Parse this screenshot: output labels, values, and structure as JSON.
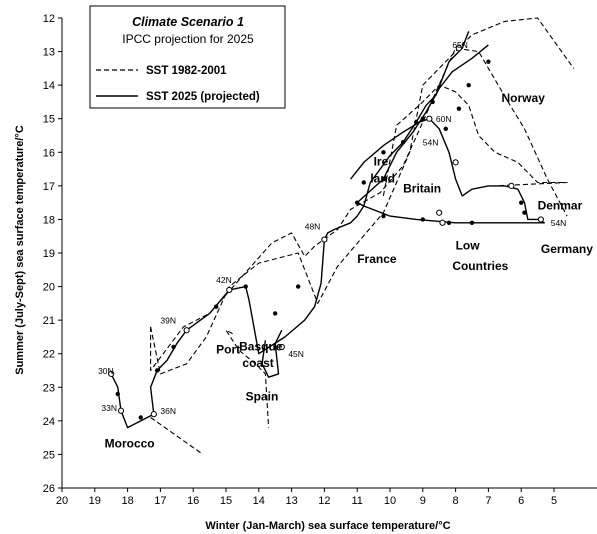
{
  "chart_data": {
    "type": "line",
    "title": "Climate Scenario 1",
    "subtitle": "IPCC projection for 2025",
    "xlabel": "Winter (Jan-March) sea surface temperature/°C",
    "ylabel": "Summer (July-Sept) sea surface temperature/°C",
    "xlim": [
      20,
      4.5
    ],
    "ylim": [
      26,
      12
    ],
    "x_reversed": true,
    "y_reversed": true,
    "xticks": [
      20,
      19,
      18,
      17,
      16,
      15,
      14,
      13,
      12,
      11,
      10,
      9,
      8,
      7,
      6,
      5
    ],
    "yticks": [
      12,
      13,
      14,
      15,
      16,
      17,
      18,
      19,
      20,
      21,
      22,
      23,
      24,
      25,
      26
    ],
    "grid": false,
    "legend_placement": "top-left",
    "series": [
      {
        "name": "SST 1982-2001",
        "style": "dashed",
        "segments": [
          [
            [
              17.3,
              21.2
            ],
            [
              17.0,
              22.6
            ],
            [
              16.2,
              22.3
            ],
            [
              15.6,
              21.5
            ],
            [
              14.9,
              20.0
            ],
            [
              14.0,
              19.3
            ],
            [
              12.8,
              19.0
            ],
            [
              12.2,
              20.5
            ],
            [
              11.6,
              19.4
            ],
            [
              10.2,
              17.8
            ],
            [
              9.4,
              16.0
            ],
            [
              9.0,
              14.0
            ],
            [
              8.1,
              13.1
            ],
            [
              7.5,
              12.5
            ],
            [
              6.5,
              12.1
            ],
            [
              5.5,
              12.0
            ],
            [
              4.4,
              13.5
            ]
          ],
          [
            [
              17.3,
              21.2
            ],
            [
              17.3,
              22.5
            ],
            [
              16.3,
              21.2
            ],
            [
              15.5,
              20.8
            ],
            [
              14.6,
              19.8
            ],
            [
              13.6,
              18.7
            ],
            [
              13.0,
              18.4
            ],
            [
              12.6,
              19.1
            ],
            [
              12.3,
              18.8
            ],
            [
              11.6,
              18.3
            ],
            [
              11.2,
              17.7
            ],
            [
              10.3,
              17.2
            ],
            [
              9.6,
              16.4
            ],
            [
              9.0,
              15.1
            ],
            [
              8.6,
              14.2
            ],
            [
              8.0,
              12.9
            ],
            [
              7.3,
              13.0
            ],
            [
              6.4,
              14.5
            ],
            [
              5.9,
              15.3
            ],
            [
              5.2,
              16.8
            ],
            [
              4.6,
              17.9
            ]
          ],
          [
            [
              10.2,
              17.3
            ],
            [
              9.8,
              15.2
            ],
            [
              9.0,
              14.5
            ],
            [
              8.5,
              14.0
            ],
            [
              8.0,
              14.2
            ],
            [
              7.6,
              14.6
            ],
            [
              7.3,
              15.5
            ],
            [
              6.8,
              16.0
            ],
            [
              6.1,
              16.3
            ],
            [
              5.5,
              16.9
            ],
            [
              4.6,
              16.9
            ],
            [
              6.8,
              17.0
            ]
          ],
          [
            [
              14.8,
              21.4
            ],
            [
              15.0,
              21.3
            ],
            [
              14.6,
              21.9
            ],
            [
              14.1,
              22.3
            ],
            [
              13.8,
              22.6
            ],
            [
              13.7,
              24.2
            ]
          ],
          [
            [
              17.3,
              23.9
            ],
            [
              15.7,
              25.0
            ]
          ]
        ]
      },
      {
        "name": "SST 2025 (projected)",
        "style": "solid",
        "segments": [
          [
            [
              18.5,
              22.6
            ],
            [
              18.3,
              23.0
            ],
            [
              18.2,
              23.7
            ],
            [
              18.0,
              24.2
            ],
            [
              17.2,
              23.8
            ],
            [
              17.3,
              23.0
            ],
            [
              17.1,
              22.5
            ],
            [
              16.8,
              22.2
            ],
            [
              16.5,
              21.7
            ],
            [
              16.2,
              21.3
            ],
            [
              15.5,
              20.8
            ],
            [
              14.9,
              20.1
            ],
            [
              14.4,
              20.0
            ],
            [
              14.3,
              20.4
            ],
            [
              14.0,
              22.0
            ],
            [
              13.2,
              21.5
            ],
            [
              12.6,
              21.0
            ],
            [
              12.3,
              20.6
            ],
            [
              12.1,
              19.9
            ],
            [
              12.0,
              18.6
            ],
            [
              11.9,
              18.4
            ],
            [
              11.7,
              18.3
            ],
            [
              11.2,
              18.1
            ],
            [
              11.0,
              17.9
            ],
            [
              10.8,
              17.6
            ],
            [
              10.6,
              16.9
            ],
            [
              10.0,
              16.1
            ],
            [
              9.6,
              15.7
            ],
            [
              9.2,
              15.1
            ],
            [
              8.9,
              14.6
            ],
            [
              8.6,
              14.3
            ],
            [
              8.2,
              13.3
            ],
            [
              7.8,
              12.9
            ],
            [
              7.6,
              12.4
            ]
          ],
          [
            [
              11.0,
              17.5
            ],
            [
              10.2,
              16.8
            ],
            [
              9.8,
              16.0
            ],
            [
              9.3,
              15.4
            ],
            [
              8.9,
              14.8
            ],
            [
              8.5,
              14.1
            ],
            [
              8.1,
              13.6
            ],
            [
              7.5,
              13.2
            ],
            [
              7.0,
              12.8
            ]
          ],
          [
            [
              11.2,
              16.8
            ],
            [
              10.8,
              16.3
            ],
            [
              10.2,
              15.8
            ],
            [
              9.6,
              15.4
            ],
            [
              9.1,
              15.1
            ],
            [
              8.8,
              15.0
            ],
            [
              8.5,
              15.3
            ],
            [
              8.2,
              16.0
            ],
            [
              8.0,
              16.8
            ],
            [
              7.8,
              17.3
            ],
            [
              7.5,
              17.1
            ],
            [
              7.0,
              17.0
            ],
            [
              6.5,
              17.0
            ],
            [
              6.1,
              17.1
            ],
            [
              5.9,
              17.5
            ],
            [
              5.8,
              18.0
            ],
            [
              5.5,
              18.0
            ],
            [
              5.3,
              18.1
            ],
            [
              6.0,
              18.1
            ],
            [
              7.0,
              18.1
            ],
            [
              8.0,
              18.1
            ],
            [
              9.2,
              18.0
            ],
            [
              10.0,
              17.9
            ],
            [
              10.8,
              17.6
            ],
            [
              11.0,
              17.5
            ]
          ],
          [
            [
              13.8,
              21.6
            ],
            [
              13.9,
              22.3
            ],
            [
              13.7,
              22.7
            ],
            [
              13.4,
              22.6
            ],
            [
              13.5,
              21.7
            ],
            [
              13.3,
              21.3
            ]
          ]
        ]
      }
    ],
    "annotations": [
      {
        "text": "30N",
        "x": 18.9,
        "y": 22.6,
        "kind": "latitude"
      },
      {
        "text": "33N",
        "x": 18.8,
        "y": 23.7,
        "kind": "latitude"
      },
      {
        "text": "36N",
        "x": 17.0,
        "y": 23.8,
        "kind": "latitude"
      },
      {
        "text": "39N",
        "x": 17.0,
        "y": 21.1,
        "kind": "latitude"
      },
      {
        "text": "42N",
        "x": 15.3,
        "y": 19.9,
        "kind": "latitude"
      },
      {
        "text": "45N",
        "x": 13.1,
        "y": 22.1,
        "kind": "latitude"
      },
      {
        "text": "48N",
        "x": 12.6,
        "y": 18.3,
        "kind": "latitude"
      },
      {
        "text": "54N",
        "x": 9.0,
        "y": 15.8,
        "kind": "latitude"
      },
      {
        "text": "60N",
        "x": 8.6,
        "y": 15.1,
        "kind": "latitude"
      },
      {
        "text": "65N",
        "x": 8.1,
        "y": 12.9,
        "kind": "latitude"
      },
      {
        "text": "54N",
        "x": 5.1,
        "y": 18.2,
        "kind": "latitude"
      },
      {
        "text": "Morocco",
        "x": 18.7,
        "y": 24.8,
        "kind": "region"
      },
      {
        "text": "Port",
        "x": 15.3,
        "y": 22.0,
        "kind": "region"
      },
      {
        "text": "Basque",
        "x": 14.6,
        "y": 21.9,
        "kind": "region"
      },
      {
        "text": "coast",
        "x": 14.5,
        "y": 22.4,
        "kind": "region"
      },
      {
        "text": "Spain",
        "x": 14.4,
        "y": 23.4,
        "kind": "region"
      },
      {
        "text": "France",
        "x": 11.0,
        "y": 19.3,
        "kind": "region"
      },
      {
        "text": "Ire",
        "x": 10.5,
        "y": 16.4,
        "kind": "region"
      },
      {
        "text": "land",
        "x": 10.6,
        "y": 16.9,
        "kind": "region"
      },
      {
        "text": "Britain",
        "x": 9.6,
        "y": 17.2,
        "kind": "region"
      },
      {
        "text": "Low",
        "x": 8.0,
        "y": 18.9,
        "kind": "region"
      },
      {
        "text": "Countries",
        "x": 8.1,
        "y": 19.5,
        "kind": "region"
      },
      {
        "text": "Norway",
        "x": 6.6,
        "y": 14.5,
        "kind": "region"
      },
      {
        "text": "Denmar",
        "x": 5.5,
        "y": 17.7,
        "kind": "region"
      },
      {
        "text": "Germany",
        "x": 5.4,
        "y": 19.0,
        "kind": "region"
      }
    ],
    "markers": {
      "open": [
        [
          18.5,
          22.6
        ],
        [
          18.2,
          23.7
        ],
        [
          17.2,
          23.8
        ],
        [
          16.2,
          21.3
        ],
        [
          14.9,
          20.1
        ],
        [
          13.3,
          21.8
        ],
        [
          12.0,
          18.6
        ],
        [
          8.8,
          15.0
        ],
        [
          7.9,
          12.9
        ],
        [
          6.3,
          17.0
        ],
        [
          5.4,
          18.0
        ],
        [
          8.5,
          17.8
        ],
        [
          8.4,
          18.1
        ],
        [
          8.0,
          16.3
        ]
      ],
      "filled": [
        [
          18.3,
          23.2
        ],
        [
          17.6,
          23.9
        ],
        [
          17.1,
          22.5
        ],
        [
          16.6,
          21.8
        ],
        [
          15.3,
          20.6
        ],
        [
          14.4,
          20.0
        ],
        [
          13.5,
          20.8
        ],
        [
          12.8,
          20.0
        ],
        [
          11.0,
          17.5
        ],
        [
          10.8,
          16.9
        ],
        [
          10.2,
          16.0
        ],
        [
          9.6,
          15.7
        ],
        [
          9.2,
          15.1
        ],
        [
          8.3,
          15.3
        ],
        [
          7.9,
          14.7
        ],
        [
          7.6,
          14.0
        ],
        [
          7.0,
          13.3
        ],
        [
          6.0,
          17.5
        ],
        [
          5.9,
          17.8
        ],
        [
          7.5,
          18.1
        ],
        [
          8.2,
          18.1
        ],
        [
          9.0,
          18.0
        ],
        [
          10.2,
          17.9
        ],
        [
          10.2,
          16.8
        ],
        [
          9.0,
          15.0
        ],
        [
          8.7,
          14.5
        ]
      ]
    }
  }
}
